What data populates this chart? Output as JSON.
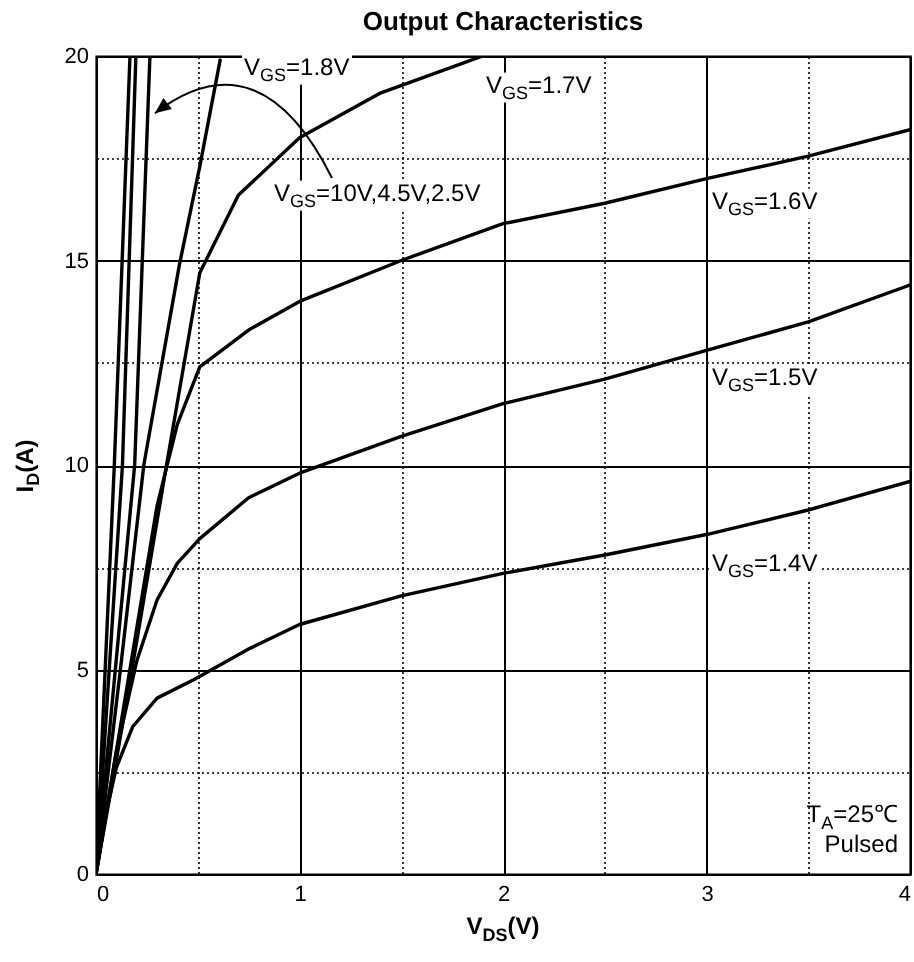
{
  "chart_data": {
    "type": "line",
    "title": "Output Characteristics",
    "xlabel": "V$_{DS}$(V)",
    "ylabel": "I$_{D}$(A)",
    "xlim": [
      0,
      4
    ],
    "ylim": [
      0,
      20
    ],
    "xticks": [
      0,
      {
        "value": 0.5,
        "label": null
      },
      1,
      {
        "value": 1.5,
        "label": null
      },
      2,
      {
        "value": 2.5,
        "label": null
      },
      3,
      {
        "value": 3.5,
        "label": null
      },
      4
    ],
    "yticks": [
      0,
      {
        "value": 2.5,
        "label": null
      },
      5,
      {
        "value": 7.5,
        "label": null
      },
      10,
      {
        "value": 12.5,
        "label": null
      },
      15,
      {
        "value": 17.5,
        "label": null
      },
      20
    ],
    "grid": true,
    "line_style": "solid",
    "series": [
      {
        "color": "#000000",
        "x": [
          0,
          0.09,
          0.167
        ],
        "values": [
          0,
          10,
          20
        ]
      },
      {
        "color": "#000000",
        "x": [
          0,
          0.13,
          0.196
        ],
        "values": [
          0,
          10,
          20
        ]
      },
      {
        "color": "#000000",
        "x": [
          0,
          0.19,
          0.265
        ],
        "values": [
          0,
          10,
          20
        ]
      },
      {
        "color": "#000000",
        "x": [
          0,
          0.12,
          0.235,
          0.41,
          0.51,
          0.61
        ],
        "values": [
          0,
          5,
          10,
          14.9,
          17.3,
          19.9
        ]
      },
      {
        "color": "#000000",
        "x": [
          0,
          0.09,
          0.18,
          0.35,
          0.51,
          0.7,
          1.0,
          1.4,
          1.79,
          1.9
        ],
        "values": [
          0,
          2.5,
          5.1,
          10.1,
          14.7,
          16.6,
          18.0,
          19.1,
          19.8,
          20
        ]
      },
      {
        "color": "#000000",
        "x": [
          0,
          0.1,
          0.2,
          0.3,
          0.4,
          0.51,
          0.75,
          1.0,
          1.5,
          2.0,
          2.5,
          3.0,
          3.5,
          4.0
        ],
        "values": [
          0,
          3,
          6,
          9,
          11,
          12.4,
          13.3,
          14.0,
          15.0,
          15.9,
          16.4,
          17.0,
          17.55,
          18.2
        ]
      },
      {
        "color": "#000000",
        "x": [
          0,
          0.1,
          0.2,
          0.3,
          0.4,
          0.51,
          0.75,
          1.0,
          1.5,
          2.0,
          2.5,
          3.0,
          3.5,
          4.0
        ],
        "values": [
          0,
          3,
          5.2,
          6.7,
          7.6,
          8.2,
          9.2,
          9.8,
          10.7,
          11.5,
          12.1,
          12.8,
          13.5,
          14.4
        ]
      },
      {
        "color": "#000000",
        "x": [
          0,
          0.05,
          0.1,
          0.18,
          0.3,
          0.48,
          0.75,
          1.0,
          1.5,
          2.0,
          2.5,
          3.0,
          3.5,
          4.0
        ],
        "values": [
          0,
          1.5,
          2.6,
          3.6,
          4.3,
          4.75,
          5.5,
          6.1,
          6.8,
          7.35,
          7.8,
          8.3,
          8.9,
          9.6
        ]
      }
    ],
    "annotations": [
      "V$_{GS}$=1.8V",
      "V$_{GS}$=1.7V",
      {
        "text": "V$_{GS}$=10V,4.5V,2.5V",
        "x": 0.26,
        "y": 18.6
      },
      "V$_{GS}$=1.6V",
      "V$_{GS}$=1.5V",
      "V$_{GS}$=1.4V",
      "T$_{A}$=25℃",
      "Pulsed"
    ]
  }
}
